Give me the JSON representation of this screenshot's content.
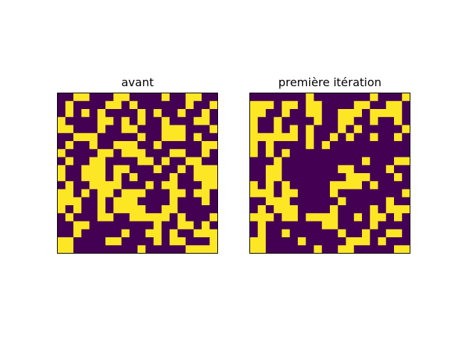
{
  "chart_data": [
    {
      "type": "heatmap",
      "title": "avant",
      "rows": 20,
      "cols": 20,
      "colors": {
        "0": "#440154",
        "1": "#fde725"
      },
      "grid": [
        "00110001100001001100",
        "01000011010000001001",
        "01010100001010010010",
        "10000110101001000110",
        "11000100110001110001",
        "00111000001001110100",
        "01001001110010000011",
        "10000110111000110010",
        "01001100001101001100",
        "10011101100010010111",
        "10011101010000100111",
        "01001111000101100011",
        "11010110111000110110",
        "11100101110000100010",
        "10100101111001100000",
        "01000110011111010001",
        "00110000000010011010",
        "00100000100110100111",
        "11000011000010110001",
        "11000000001000001111"
      ]
    },
    {
      "type": "heatmap",
      "title": "première itération",
      "rows": 20,
      "cols": 20,
      "colors": {
        "0": "#440154",
        "1": "#fde725"
      },
      "grid": [
        "00000001000000010001",
        "11101101100001100110",
        "11001001100111011110",
        "10010000100110010010",
        "10010101000101000001",
        "11111101001010010010",
        "10100001010000000000",
        "10101000000000000000",
        "00010000000000100011",
        "00110000000110000100",
        "00110000000011100010",
        "10101000001111010000",
        "11101100001000000001",
        "00111000000100000100",
        "01011100001000010111",
        "11101101111001011010",
        "01000000011000010000",
        "01001000000100100110",
        "11000010000011101000",
        "11000000100110000011"
      ]
    }
  ]
}
